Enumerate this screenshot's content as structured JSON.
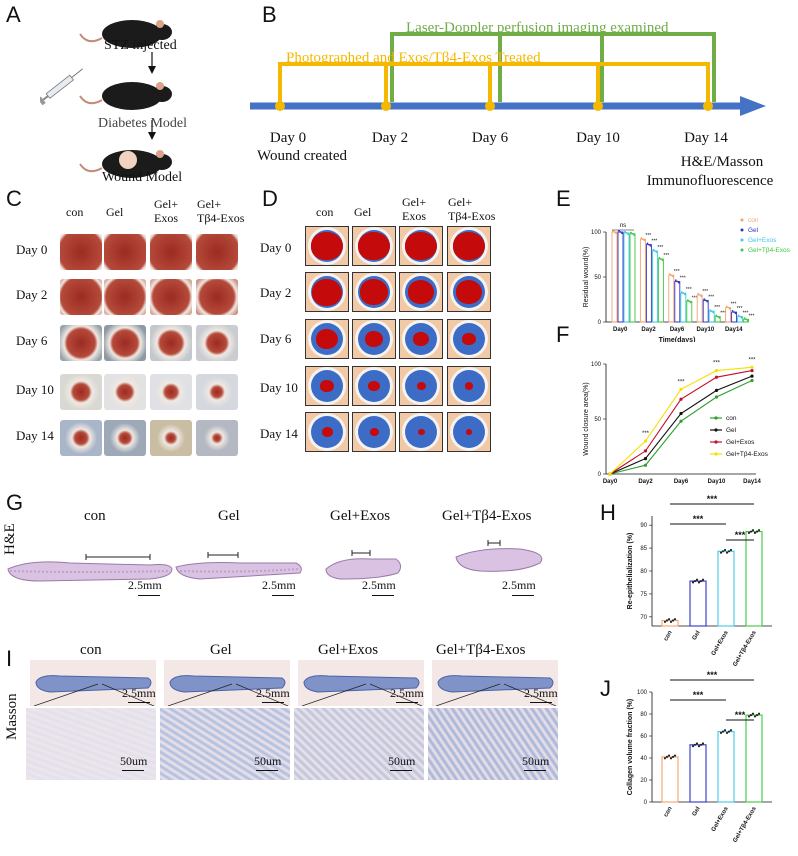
{
  "panels": {
    "A": "A",
    "B": "B",
    "C": "C",
    "D": "D",
    "E": "E",
    "F": "F",
    "G": "G",
    "H": "H",
    "I": "I",
    "J": "J"
  },
  "panel_a": {
    "stz": "STZ injected",
    "diabetes": "Diabetes Model",
    "wound": "Wound Model"
  },
  "panel_b": {
    "laser": "Laser-Doppler perfusion imaging examined",
    "photo": "Photographed and Exos/Tβ4-Exos Treated",
    "days": [
      "Day 0",
      "Day 2",
      "Day 6",
      "Day 10",
      "Day 14"
    ],
    "day0_sub": "Wound created",
    "day14_sub1": "H&E/Masson",
    "day14_sub2": "Immunofluorescence",
    "colors": {
      "timeline": "#4472c4",
      "yellow": "#f5b800",
      "green": "#70ad47"
    }
  },
  "groups_c": [
    "con",
    "Gel",
    "Gel+\nExos",
    "Gel+\nTβ4-Exos"
  ],
  "c_cols": {
    "con": "con",
    "gel": "Gel",
    "gel_exos_1": "Gel+",
    "gel_exos_2": "Exos",
    "gel_tb4_1": "Gel+",
    "gel_tb4_2": "Tβ4-Exos"
  },
  "rows": [
    "Day 0",
    "Day 2",
    "Day 6",
    "Day 10",
    "Day 14"
  ],
  "chart_data": [
    {
      "panel": "E",
      "type": "bar",
      "categories": [
        "Day0",
        "Day2",
        "Day6",
        "Day10",
        "Day14"
      ],
      "series": [
        {
          "name": "con",
          "color": "#f5a36b",
          "values": [
            100,
            92,
            52,
            30,
            16
          ]
        },
        {
          "name": "Gel",
          "color": "#3232c8",
          "values": [
            100,
            86,
            45,
            24,
            11
          ]
        },
        {
          "name": "Gel+Exos",
          "color": "#3cc8e6",
          "values": [
            99,
            79,
            32,
            12,
            6
          ]
        },
        {
          "name": "Gel+Tβ4-Exos",
          "color": "#3cc83c",
          "values": [
            98,
            70,
            23,
            6,
            3
          ]
        }
      ],
      "title": "",
      "xlabel": "Time(days)",
      "ylabel": "Residual wound(%)",
      "ylim": [
        0,
        100
      ],
      "yticks": [
        "0",
        "50",
        "100"
      ],
      "annotation_ns": "ns",
      "annotation_sig": "***"
    },
    {
      "panel": "F",
      "type": "line",
      "categories": [
        "Day0",
        "Day2",
        "Day6",
        "Day10",
        "Day14"
      ],
      "series": [
        {
          "name": "con",
          "color": "#2ca02c",
          "values": [
            0,
            8,
            48,
            70,
            85
          ]
        },
        {
          "name": "Gel",
          "color": "#111111",
          "values": [
            0,
            14,
            55,
            76,
            89
          ]
        },
        {
          "name": "Gel+Exos",
          "color": "#c0102a",
          "values": [
            0,
            21,
            68,
            88,
            94
          ]
        },
        {
          "name": "Gel+Tβ4-Exos",
          "color": "#f5e000",
          "values": [
            0,
            30,
            77,
            94,
            97
          ]
        }
      ],
      "xlabel": "",
      "ylabel": "Wound closure area(%)",
      "ylim": [
        0,
        100
      ],
      "yticks": [
        "0",
        "50",
        "100"
      ],
      "annotation_sig": "***"
    },
    {
      "panel": "H",
      "type": "bar",
      "categories": [
        "con",
        "Gel",
        "Gel+Exos",
        "Gel+Tβ4-Exos"
      ],
      "colors": [
        "#f5a36b",
        "#3232c8",
        "#3cc8e6",
        "#3cc83c"
      ],
      "values": [
        69.2,
        77.8,
        84.3,
        88.6
      ],
      "ylabel": "Re-epithelialization (%)",
      "ylim": [
        68,
        92
      ],
      "yticks": [
        "70",
        "75",
        "80",
        "85",
        "90"
      ],
      "annotation_sig": "***"
    },
    {
      "panel": "J",
      "type": "bar",
      "categories": [
        "con",
        "Gel",
        "Gel+Exos",
        "Gel+Tβ4-Exos"
      ],
      "colors": [
        "#f5a36b",
        "#3232c8",
        "#3cc8e6",
        "#3cc83c"
      ],
      "values": [
        41,
        52,
        64,
        79
      ],
      "ylabel": "Collagen volume fraction (%)",
      "ylim": [
        0,
        100
      ],
      "yticks": [
        "0",
        "20",
        "40",
        "60",
        "80",
        "100"
      ],
      "annotation_sig": "***"
    }
  ],
  "panel_g": {
    "side": "H&E",
    "titles": [
      "con",
      "Gel",
      "Gel+Exos",
      "Gel+Tβ4-Exos"
    ],
    "scale": "2.5mm"
  },
  "panel_i": {
    "side": "Masson",
    "titles": [
      "con",
      "Gel",
      "Gel+Exos",
      "Gel+Tβ4-Exos"
    ],
    "scale_top": "2.5mm",
    "scale_bottom": "50um"
  }
}
